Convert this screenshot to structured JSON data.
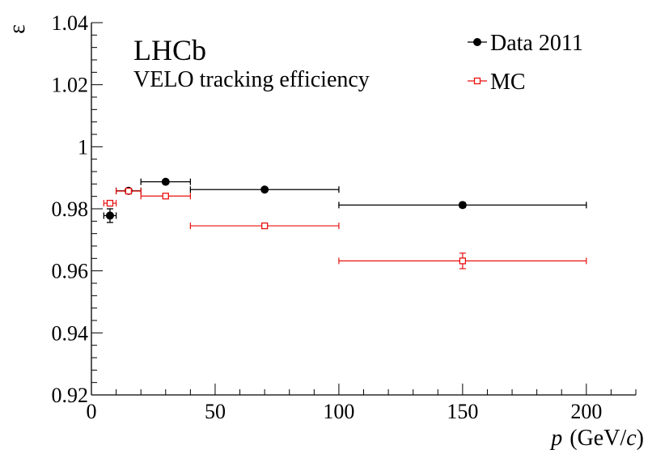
{
  "chart_data": {
    "type": "scatter",
    "title": "LHCb",
    "subtitle": "VELO tracking efficiency",
    "ylabel": "ε",
    "xlabel_var": "p",
    "xlabel_units": "(GeV/",
    "xlabel_units_italic": "c",
    "xlabel_close": ")",
    "xlim": [
      0,
      220
    ],
    "ylim": [
      0.92,
      1.04
    ],
    "x_ticks": [
      0,
      50,
      100,
      150,
      200
    ],
    "x_tick_labels": [
      "0",
      "50",
      "100",
      "150",
      "200"
    ],
    "y_ticks": [
      0.92,
      0.94,
      0.96,
      0.98,
      1.0,
      1.02,
      1.04
    ],
    "y_tick_labels": [
      "0.92",
      "0.94",
      "0.96",
      "0.98",
      "1",
      "1.02",
      "1.04"
    ],
    "grid": false,
    "legend_position": "top-right",
    "series": [
      {
        "name": "Data 2011",
        "color": "#000000",
        "marker": "filled-circle",
        "points": [
          {
            "x": 7.5,
            "xlow": 5,
            "xhigh": 10,
            "y": 0.9778,
            "yerr": 0.0022
          },
          {
            "x": 15,
            "xlow": 10,
            "xhigh": 20,
            "y": 0.9858,
            "yerr": 0.0008
          },
          {
            "x": 30,
            "xlow": 20,
            "xhigh": 40,
            "y": 0.9887,
            "yerr": 0.0005
          },
          {
            "x": 70,
            "xlow": 40,
            "xhigh": 100,
            "y": 0.9862,
            "yerr": 0.0004
          },
          {
            "x": 150,
            "xlow": 100,
            "xhigh": 200,
            "y": 0.9812,
            "yerr": 0.0008
          }
        ]
      },
      {
        "name": "MC",
        "color": "#e8110f",
        "marker": "open-square",
        "points": [
          {
            "x": 7.5,
            "xlow": 5,
            "xhigh": 10,
            "y": 0.9818,
            "yerr": 0.0005
          },
          {
            "x": 15,
            "xlow": 10,
            "xhigh": 20,
            "y": 0.9857,
            "yerr": 0.0004
          },
          {
            "x": 30,
            "xlow": 20,
            "xhigh": 40,
            "y": 0.9841,
            "yerr": 0.0003
          },
          {
            "x": 70,
            "xlow": 40,
            "xhigh": 100,
            "y": 0.9745,
            "yerr": 0.0004
          },
          {
            "x": 150,
            "xlow": 100,
            "xhigh": 200,
            "y": 0.9632,
            "yerr": 0.0025
          }
        ]
      }
    ]
  }
}
